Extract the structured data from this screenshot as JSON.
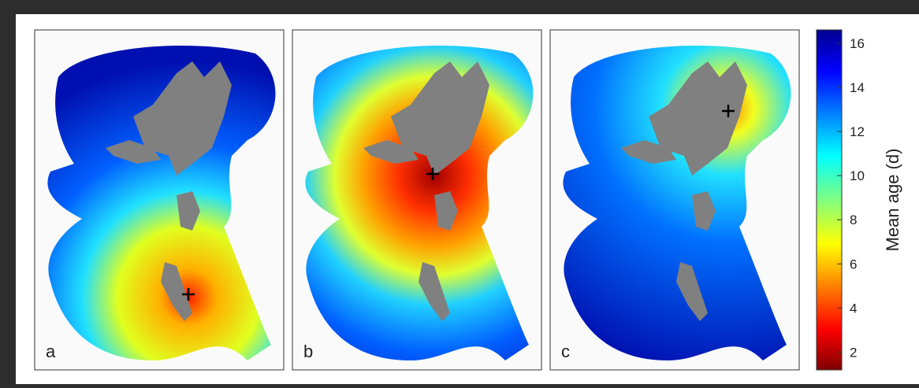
{
  "chart_data": {
    "type": "map-panels",
    "panels": [
      "a",
      "b",
      "c"
    ],
    "colorbar": {
      "label": "Mean age (d)",
      "clim": [
        1.2,
        16.6
      ],
      "ticks": [
        2,
        4,
        6,
        8,
        10,
        12,
        14,
        16
      ]
    }
  }
}
